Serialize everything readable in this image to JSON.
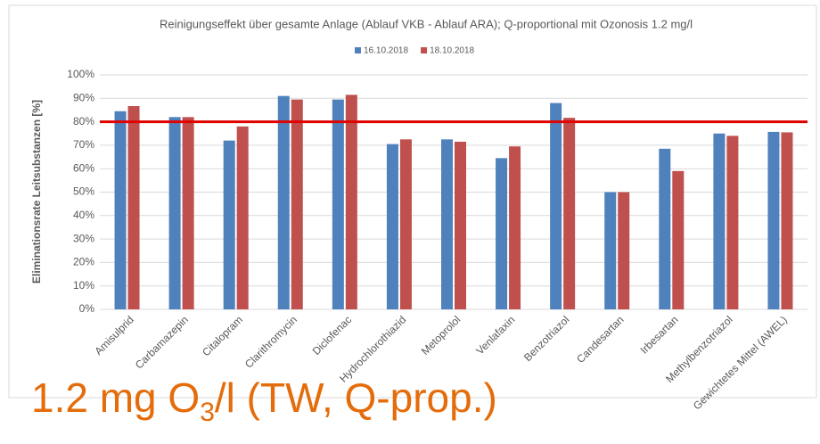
{
  "chart_data": {
    "type": "bar",
    "title": "Reinigungseffekt über gesamte Anlage (Ablauf VKB - Ablauf ARA); Q-proportional mit Ozonosis 1.2 mg/l",
    "y_label": "Eliminationsrate Leitsubstanzen [%]",
    "categories": [
      "Amisulprid",
      "Carbamazepin",
      "Citalopram",
      "Clarithromycin",
      "Diclofenac",
      "Hydrochlorothiazid",
      "Metoprolol",
      "Venlafaxin",
      "Benzotriazol",
      "Candesartan",
      "Irbesartan",
      "Methylbenzotriazol",
      "Gewichtetes Mittel (AWEL)"
    ],
    "series": [
      {
        "name": "16.10.2018",
        "color": "#4f81bd",
        "values": [
          84.5,
          82,
          72,
          91,
          89.5,
          70.5,
          72.5,
          64.5,
          88,
          50,
          68.5,
          75,
          75.7
        ]
      },
      {
        "name": "18.10.2018",
        "color": "#c0504d",
        "values": [
          86.7,
          82,
          78,
          89.5,
          91.5,
          72.5,
          71.5,
          69.5,
          81.7,
          50,
          59,
          74,
          75.5
        ]
      }
    ],
    "ylim": [
      0,
      100
    ],
    "yticks": [
      {
        "value": 0,
        "label": "0%"
      },
      {
        "value": 10,
        "label": "10%"
      },
      {
        "value": 20,
        "label": "20%"
      },
      {
        "value": 30,
        "label": "30%"
      },
      {
        "value": 40,
        "label": "40%"
      },
      {
        "value": 50,
        "label": "50%"
      },
      {
        "value": 60,
        "label": "60%"
      },
      {
        "value": 70,
        "label": "70%"
      },
      {
        "value": 80,
        "label": "80%"
      },
      {
        "value": 90,
        "label": "90%"
      },
      {
        "value": 100,
        "label": "100%"
      }
    ],
    "grid": true,
    "legend": "top",
    "reference_line": {
      "value": 80,
      "color": "#e00000"
    },
    "annotation": {
      "prefix": "1.2 mg O",
      "subscript": "3",
      "suffix": "/l (TW, Q-prop.)"
    }
  }
}
